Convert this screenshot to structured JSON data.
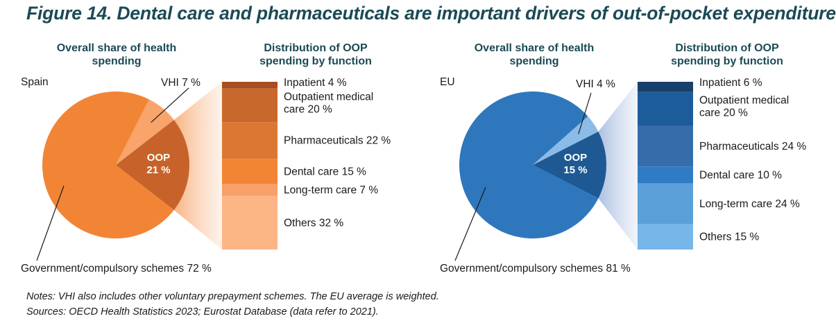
{
  "title": "Figure 14. Dental care and pharmaceuticals are important drivers of out-of-pocket expenditure",
  "panels": {
    "spain": {
      "pie_heading": [
        "Overall share of health",
        "spending"
      ],
      "bar_heading": [
        "Distribution of OOP",
        "spending by function"
      ],
      "country": "Spain",
      "oop_label": [
        "OOP",
        "21 %"
      ],
      "vhi_label": "VHI 7 %",
      "gov_label": "Government/compulsory schemes 72 %"
    },
    "eu": {
      "pie_heading": [
        "Overall share of health",
        "spending"
      ],
      "bar_heading": [
        "Distribution of OOP",
        "spending by function"
      ],
      "country": "EU",
      "oop_label": [
        "OOP",
        "15 %"
      ],
      "vhi_label": "VHI 4 %",
      "gov_label": "Government/compulsory schemes 81 %"
    }
  },
  "chart_data": [
    {
      "type": "pie",
      "panel": "Spain",
      "slices": [
        {
          "label": "Government/compulsory schemes",
          "value": 72,
          "color": "#f28535"
        },
        {
          "label": "OOP",
          "value": 21,
          "color": "#c7632a"
        },
        {
          "label": "VHI",
          "value": 7,
          "color": "#f8a46b"
        }
      ]
    },
    {
      "type": "bar",
      "stacked": true,
      "panel": "Spain",
      "segments": [
        {
          "label": "Inpatient 4 %",
          "value": 4,
          "color": "#a84e20"
        },
        {
          "label": [
            "Outpatient medical",
            "care 20 %"
          ],
          "value": 20,
          "color": "#c8682c"
        },
        {
          "label": "Pharmaceuticals 22 %",
          "value": 22,
          "color": "#dc7733"
        },
        {
          "label": "Dental care 15 %",
          "value": 15,
          "color": "#f28535"
        },
        {
          "label": "Long-term care 7 %",
          "value": 7,
          "color": "#f8a06a"
        },
        {
          "label": "Others 32 %",
          "value": 32,
          "color": "#fcb686"
        }
      ]
    },
    {
      "type": "pie",
      "panel": "EU",
      "slices": [
        {
          "label": "Government/compulsory schemes",
          "value": 81,
          "color": "#2f77bd"
        },
        {
          "label": "OOP",
          "value": 15,
          "color": "#1e5994"
        },
        {
          "label": "VHI",
          "value": 4,
          "color": "#8bbbe6"
        }
      ]
    },
    {
      "type": "bar",
      "stacked": true,
      "panel": "EU",
      "segments": [
        {
          "label": "Inpatient 6 %",
          "value": 6,
          "color": "#17406b"
        },
        {
          "label": [
            "Outpatient medical",
            "care 20 %"
          ],
          "value": 20,
          "color": "#1d5c9b"
        },
        {
          "label": "Pharmaceuticals 24 %",
          "value": 24,
          "color": "#366ca9"
        },
        {
          "label": "Dental care 10 %",
          "value": 10,
          "color": "#2f7bc4"
        },
        {
          "label": "Long-term care 24 %",
          "value": 24,
          "color": "#5b9fd8"
        },
        {
          "label": "Others 15 %",
          "value": 15,
          "color": "#77b6e8"
        }
      ]
    }
  ],
  "notes": [
    "Notes: VHI also includes other voluntary prepayment schemes. The EU average is weighted.",
    "Sources: OECD Health Statistics 2023; Eurostat Database (data refer to 2021)."
  ]
}
